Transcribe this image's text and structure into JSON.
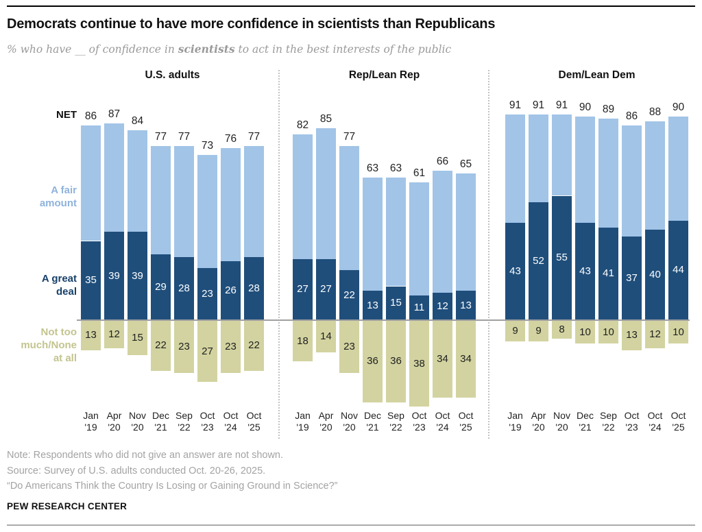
{
  "header": {
    "title": "Democrats continue to have more confidence in scientists than Republicans",
    "subtitle": {
      "pre": "% who have __ of confidence in ",
      "emph": "scientists",
      "post": " to act in the best interests of the public"
    }
  },
  "side_labels": {
    "net": "NET",
    "fair_amount": "A fair\namount",
    "great_deal": "A great\ndeal",
    "not_too_much": "Not too\nmuch/None\nat all"
  },
  "colors": {
    "fair_amount_bar": "#a2c4e7",
    "great_deal_bar": "#1f4e7b",
    "not_too_much_bar": "#d2d3a0",
    "fair_amount_label": "#8fb3dc",
    "great_deal_label": "#174069",
    "not_too_much_label": "#c3c48f",
    "value_on_dark": "#ffffff",
    "value_on_light": "#1f1f1f",
    "baseline": "#a0a0a0"
  },
  "chart_data": {
    "type": "bar",
    "stacked": true,
    "diverging": true,
    "title": "Democrats continue to have more confidence in scientists than Republicans",
    "subtitle": "% who have __ of confidence in scientists to act in the best interests of the public",
    "value_unit": "percent",
    "legend_position": "left",
    "legend": [
      "A fair amount",
      "A great deal",
      "Not too much/None at all"
    ],
    "categories": [
      "Jan '19",
      "Apr '20",
      "Nov '20",
      "Dec '21",
      "Sep '22",
      "Oct '23",
      "Oct '24",
      "Oct '25"
    ],
    "panels": [
      {
        "label": "U.S. adults",
        "series": [
          {
            "name": "NET",
            "values": [
              86,
              87,
              84,
              77,
              77,
              73,
              76,
              77
            ]
          },
          {
            "name": "A fair amount",
            "values": [
              51,
              48,
              45,
              48,
              49,
              50,
              50,
              49
            ]
          },
          {
            "name": "A great deal",
            "values": [
              35,
              39,
              39,
              29,
              28,
              23,
              26,
              28
            ]
          },
          {
            "name": "Not too much/None at all",
            "values": [
              13,
              12,
              15,
              22,
              23,
              27,
              23,
              22
            ]
          }
        ]
      },
      {
        "label": "Rep/Lean Rep",
        "series": [
          {
            "name": "NET",
            "values": [
              82,
              85,
              77,
              63,
              63,
              61,
              66,
              65
            ]
          },
          {
            "name": "A fair amount",
            "values": [
              55,
              58,
              55,
              50,
              48,
              50,
              54,
              52
            ]
          },
          {
            "name": "A great deal",
            "values": [
              27,
              27,
              22,
              13,
              15,
              11,
              12,
              13
            ]
          },
          {
            "name": "Not too much/None at all",
            "values": [
              18,
              14,
              23,
              36,
              36,
              38,
              34,
              34
            ]
          }
        ]
      },
      {
        "label": "Dem/Lean Dem",
        "series": [
          {
            "name": "NET",
            "values": [
              91,
              91,
              91,
              90,
              89,
              86,
              88,
              90
            ]
          },
          {
            "name": "A fair amount",
            "values": [
              48,
              39,
              36,
              47,
              48,
              49,
              48,
              46
            ]
          },
          {
            "name": "A great deal",
            "values": [
              43,
              52,
              55,
              43,
              41,
              37,
              40,
              44
            ]
          },
          {
            "name": "Not too much/None at all",
            "values": [
              9,
              9,
              8,
              10,
              10,
              13,
              12,
              10
            ]
          }
        ]
      }
    ]
  },
  "footer": {
    "notes": [
      "Note: Respondents who did not give an answer are not shown.",
      "Source: Survey of U.S. adults conducted Oct. 20-26, 2025.",
      "“Do Americans Think the Country Is Losing or Gaining Ground in Science?”"
    ],
    "brand": "PEW RESEARCH CENTER"
  }
}
